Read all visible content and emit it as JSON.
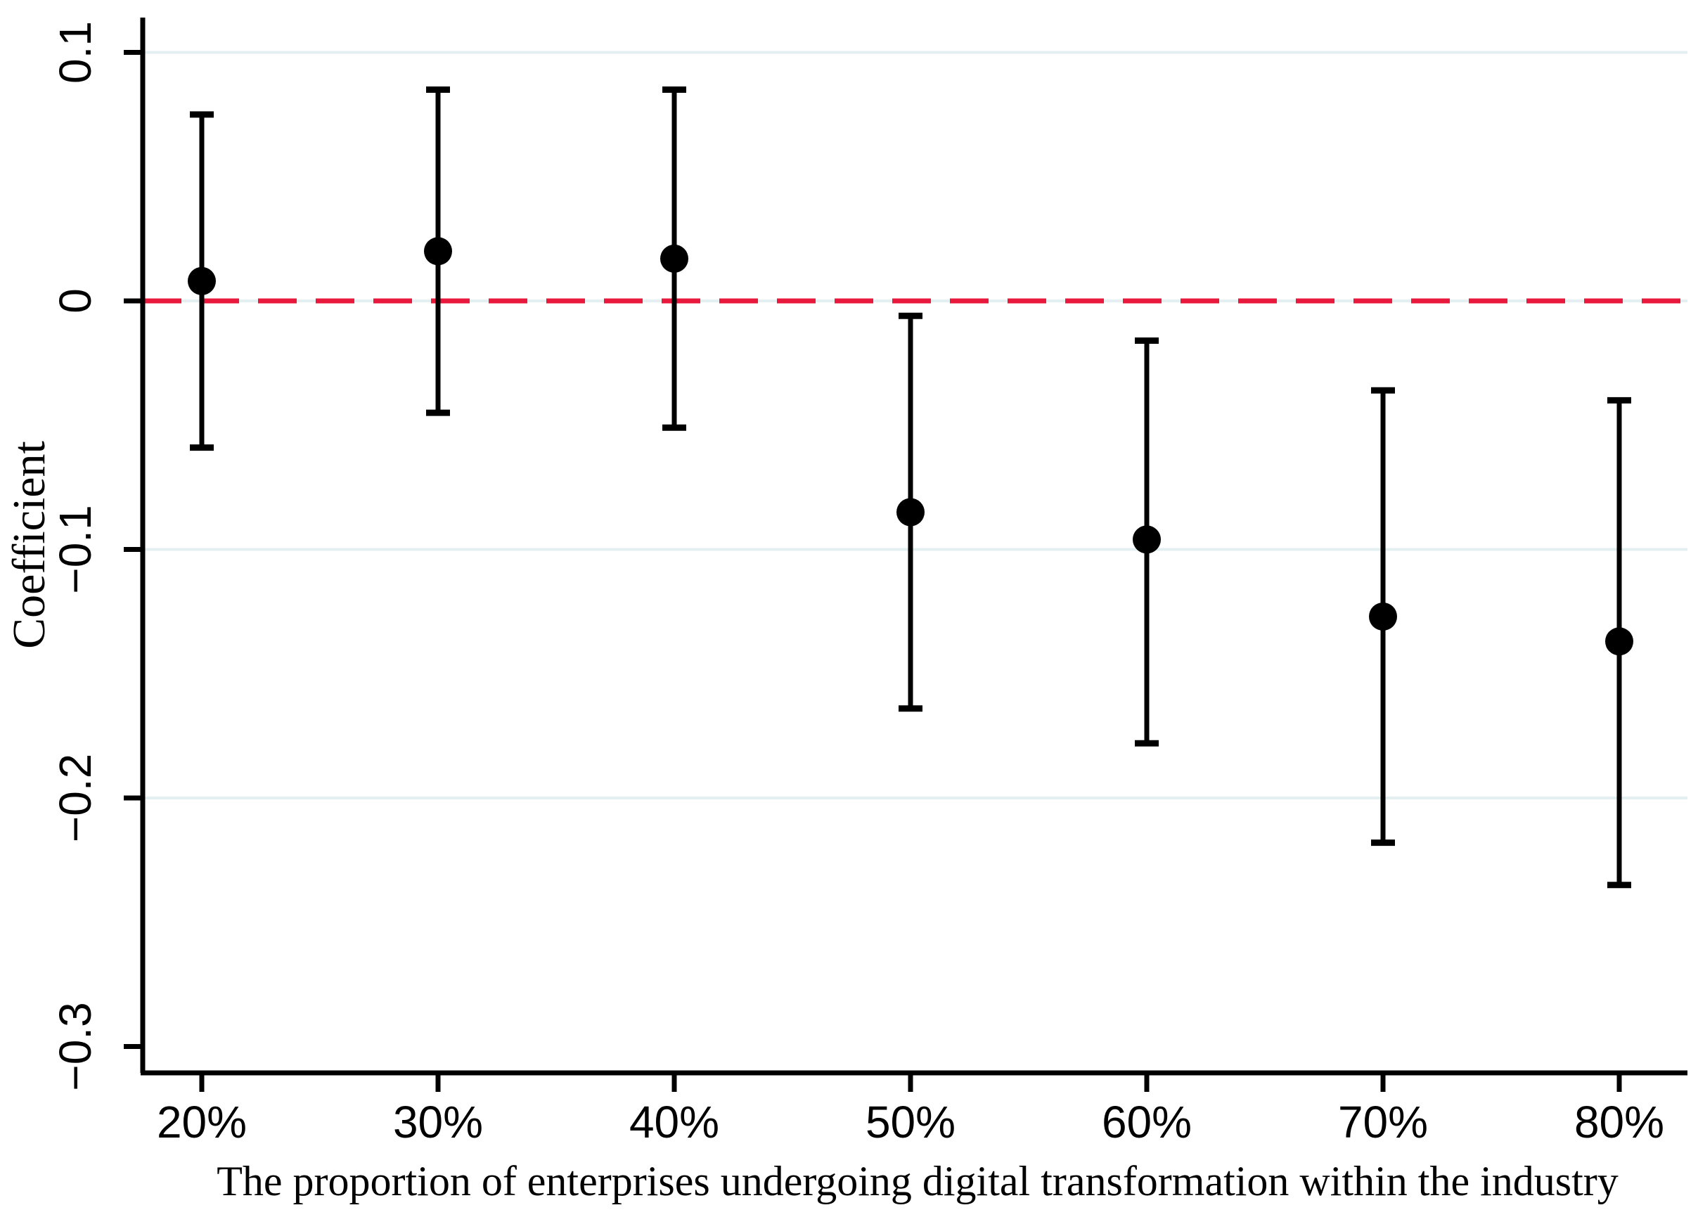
{
  "chart_data": {
    "type": "scatter",
    "subtype": "coefficient-plot-with-error-bars",
    "title": "",
    "xlabel": "The proportion of enterprises undergoing digital transformation within the industry",
    "ylabel": "Coefficient",
    "categories": [
      "20%",
      "30%",
      "40%",
      "50%",
      "60%",
      "70%",
      "80%"
    ],
    "series": [
      {
        "name": "coefficient",
        "values": [
          0.008,
          0.02,
          0.017,
          -0.085,
          -0.096,
          -0.127,
          -0.137
        ],
        "ci_low": [
          -0.059,
          -0.045,
          -0.051,
          -0.164,
          -0.178,
          -0.218,
          -0.235
        ],
        "ci_high": [
          0.075,
          0.085,
          0.085,
          -0.006,
          -0.016,
          -0.036,
          -0.04
        ]
      }
    ],
    "y_ticks": [
      0.1,
      0,
      -0.1,
      -0.2,
      -0.3
    ],
    "y_tick_labels": [
      "0.1",
      "0",
      "−0.1",
      "−0.2",
      "−0.3"
    ],
    "grid_y": [
      0.1,
      0,
      -0.1,
      -0.2
    ],
    "ref_line_y": 0,
    "ylim": [
      -0.31,
      0.114
    ],
    "legend_position": "none",
    "grid": true,
    "colors": {
      "marker": "#000000",
      "error_bar": "#000000",
      "ref_line": "#e8193c",
      "gridline": "#e3eff1",
      "axis": "#000000"
    }
  }
}
